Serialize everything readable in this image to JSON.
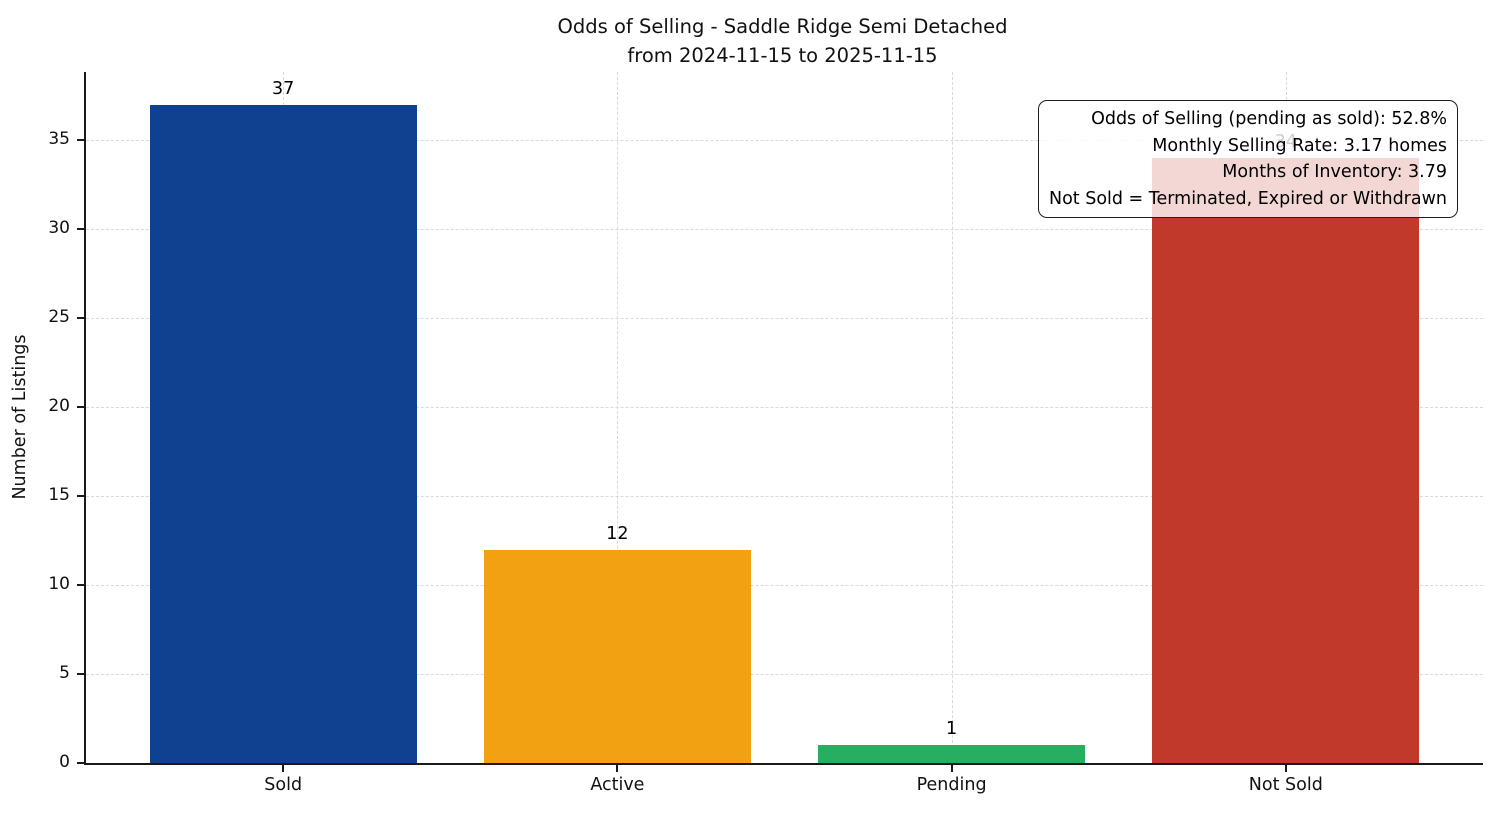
{
  "chart_data": {
    "type": "bar",
    "title": "Odds of Selling - Saddle Ridge Semi Detached",
    "subtitle": "from 2024-11-15 to 2025-11-15",
    "ylabel": "Number of Listings",
    "categories": [
      "Sold",
      "Active",
      "Pending",
      "Not Sold"
    ],
    "values": [
      37,
      12,
      1,
      34
    ],
    "bar_colors": [
      "#0e418f",
      "#f2a111",
      "#27ae60",
      "#c0392b"
    ],
    "yticks": [
      0,
      5,
      10,
      15,
      20,
      25,
      30,
      35
    ],
    "ylim": [
      0,
      38.85
    ],
    "grid": "dashed, both axes",
    "legend_position": "none",
    "annotations": [
      "Odds of Selling (pending as sold): 52.8%",
      "Monthly Selling Rate: 3.17 homes",
      "Months of Inventory: 3.79",
      "Not Sold = Terminated, Expired or Withdrawn"
    ]
  }
}
